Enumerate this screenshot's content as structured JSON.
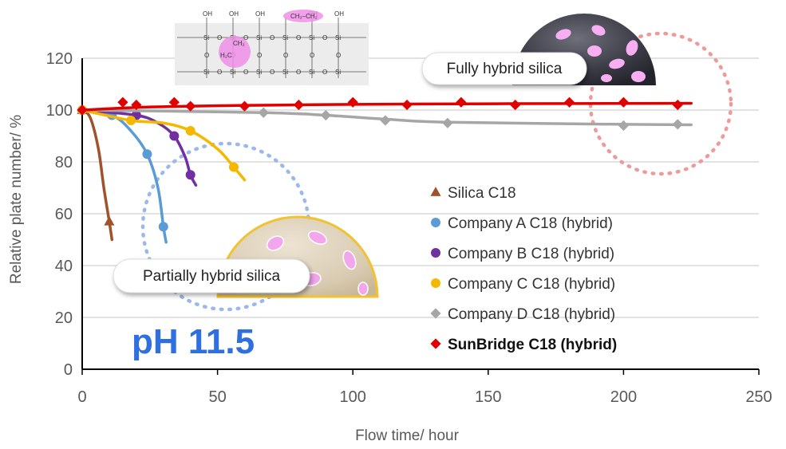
{
  "chart_data": {
    "type": "line",
    "xlabel": "Flow time/ hour",
    "ylabel": "Relative plate number/ %",
    "xlim": [
      0,
      250
    ],
    "ylim": [
      0,
      120
    ],
    "xticks": [
      0,
      50,
      100,
      150,
      200,
      250
    ],
    "yticks": [
      0,
      20,
      40,
      60,
      80,
      100,
      120
    ],
    "grid": "horizontal",
    "legend_position": "right",
    "series": [
      {
        "name": "Silica C18",
        "marker": "triangle",
        "color": "#a0522d",
        "x": [
          0,
          10
        ],
        "y": [
          100,
          57
        ],
        "curve_x": [
          0,
          3,
          6,
          8,
          10,
          11
        ],
        "curve_y": [
          100,
          97,
          85,
          70,
          57,
          50
        ]
      },
      {
        "name": "Company A C18 (hybrid)",
        "marker": "circle",
        "color": "#5b9bd5",
        "x": [
          0,
          11,
          24,
          30
        ],
        "y": [
          100,
          98,
          83,
          55
        ],
        "curve_x": [
          0,
          11,
          18,
          24,
          28,
          30,
          31
        ],
        "curve_y": [
          100,
          98,
          92,
          83,
          70,
          55,
          49
        ]
      },
      {
        "name": "Company B C18 (hybrid)",
        "marker": "circle",
        "color": "#7030a0",
        "x": [
          0,
          20,
          34,
          40
        ],
        "y": [
          100,
          98,
          90,
          75
        ],
        "curve_x": [
          0,
          20,
          28,
          34,
          38,
          40,
          42
        ],
        "curve_y": [
          100,
          98,
          95,
          90,
          82,
          75,
          71
        ]
      },
      {
        "name": "Company C C18 (hybrid)",
        "marker": "circle",
        "color": "#f5b800",
        "x": [
          0,
          18,
          40,
          56
        ],
        "y": [
          100,
          96,
          92,
          78
        ],
        "curve_x": [
          0,
          18,
          30,
          40,
          50,
          56,
          60
        ],
        "curve_y": [
          100,
          96,
          95,
          92,
          85,
          78,
          73
        ]
      },
      {
        "name": "Company D C18 (hybrid)",
        "marker": "diamond",
        "color": "#a6a6a6",
        "x": [
          0,
          67,
          90,
          112,
          135,
          200,
          220
        ],
        "y": [
          100,
          99,
          98,
          96,
          95,
          94,
          94.5
        ],
        "curve_x": [
          0,
          67,
          90,
          112,
          135,
          200,
          225
        ],
        "curve_y": [
          100,
          99,
          98,
          96.5,
          95.3,
          94.5,
          94.3
        ]
      },
      {
        "name": "SunBridge C18 (hybrid)",
        "marker": "diamond",
        "color": "#e00000",
        "bold": true,
        "x": [
          0,
          15,
          20,
          34,
          40,
          60,
          80,
          100,
          120,
          140,
          160,
          180,
          200,
          220
        ],
        "y": [
          100,
          103,
          102,
          103,
          101.5,
          101.5,
          102,
          103,
          102,
          103,
          102,
          103,
          103,
          102
        ],
        "curve_x": [
          0,
          20,
          40,
          60,
          80,
          100,
          140,
          180,
          225
        ],
        "curve_y": [
          100,
          101,
          101.5,
          101.8,
          102,
          102.2,
          102.4,
          102.5,
          102.6
        ]
      }
    ],
    "annotations": {
      "fully_hybrid": "Fully hybrid silica",
      "partially_hybrid": "Partially hybrid silica",
      "ph_label": "pH 11.5"
    },
    "structure_labels": {
      "oh": "OH",
      "si": "Si",
      "o": "O",
      "ch2_bridge": "CH₂–CH₂",
      "ch2": "CH₂",
      "h2c": "H₂C"
    }
  }
}
